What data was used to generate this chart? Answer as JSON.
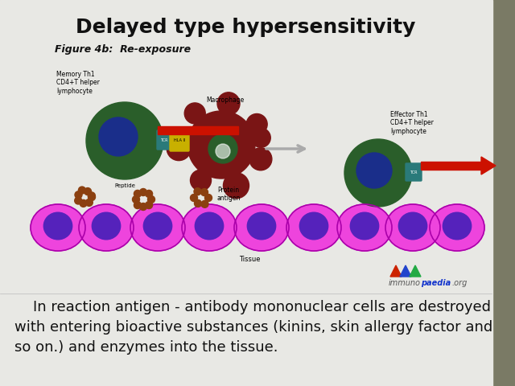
{
  "title": "Delayed type hypersensitivity",
  "title_fontsize": 18,
  "title_fontweight": "bold",
  "body_text": "    In reaction antigen - antibody mononuclear cells are destroyed\nwith entering bioactive substances (kinins, skin allergy factor and\nso on.) and enzymes into the tissue.",
  "body_fontsize": 13,
  "figure_label": "Figure 4b:  Re-exposure",
  "figure_label_fontsize": 9,
  "slide_bg": "#d8d8d0",
  "content_bg": "#e8e8e4",
  "right_strip_color": "#7a7a65",
  "text_color": "#111111",
  "green_dark": "#2a5e2a",
  "blue_nucleus": "#1a2e8a",
  "red_bar": "#cc1100",
  "teal_tcr": "#2a7a7a",
  "yellow_hla": "#c8b000",
  "macrophage_color": "#7a1515",
  "tissue_pink": "#ee44dd",
  "tissue_border": "#cc00bb",
  "tissue_nucleus": "#5522bb",
  "brown_antigen": "#8b4010",
  "arrow_gray": "#aaaaaa"
}
